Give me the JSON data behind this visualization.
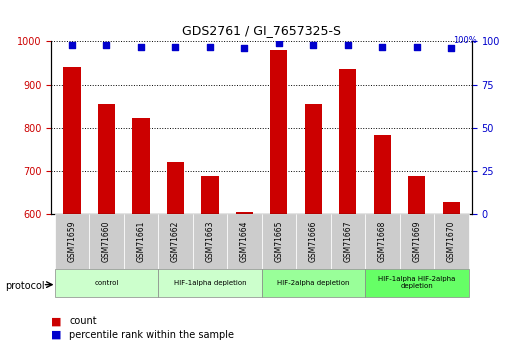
{
  "title": "GDS2761 / GI_7657325-S",
  "samples": [
    "GSM71659",
    "GSM71660",
    "GSM71661",
    "GSM71662",
    "GSM71663",
    "GSM71664",
    "GSM71665",
    "GSM71666",
    "GSM71667",
    "GSM71668",
    "GSM71669",
    "GSM71670"
  ],
  "counts": [
    940,
    855,
    822,
    720,
    688,
    605,
    980,
    855,
    935,
    782,
    688,
    628
  ],
  "percentiles": [
    98,
    98,
    97,
    97,
    97,
    96,
    99,
    98,
    98,
    97,
    97,
    96
  ],
  "ylim_left": [
    600,
    1000
  ],
  "ylim_right": [
    0,
    100
  ],
  "yticks_left": [
    600,
    700,
    800,
    900,
    1000
  ],
  "yticks_right": [
    0,
    25,
    50,
    75,
    100
  ],
  "bar_color": "#cc0000",
  "dot_color": "#0000cc",
  "grid_color": "#333333",
  "bg_color": "#ffffff",
  "tick_label_color_left": "#cc0000",
  "tick_label_color_right": "#0000cc",
  "protocol_groups": [
    {
      "label": "control",
      "start": 0,
      "end": 2,
      "color": "#ccffcc"
    },
    {
      "label": "HIF-1alpha depletion",
      "start": 3,
      "end": 5,
      "color": "#ccffcc"
    },
    {
      "label": "HIF-2alpha depletion",
      "start": 6,
      "end": 8,
      "color": "#99ff99"
    },
    {
      "label": "HIF-1alpha HIF-2alpha\ndepletion",
      "start": 9,
      "end": 11,
      "color": "#66ff66"
    }
  ],
  "xticklabel_bg": "#cccccc",
  "legend_count_label": "count",
  "legend_pct_label": "percentile rank within the sample",
  "protocol_label": "protocol"
}
